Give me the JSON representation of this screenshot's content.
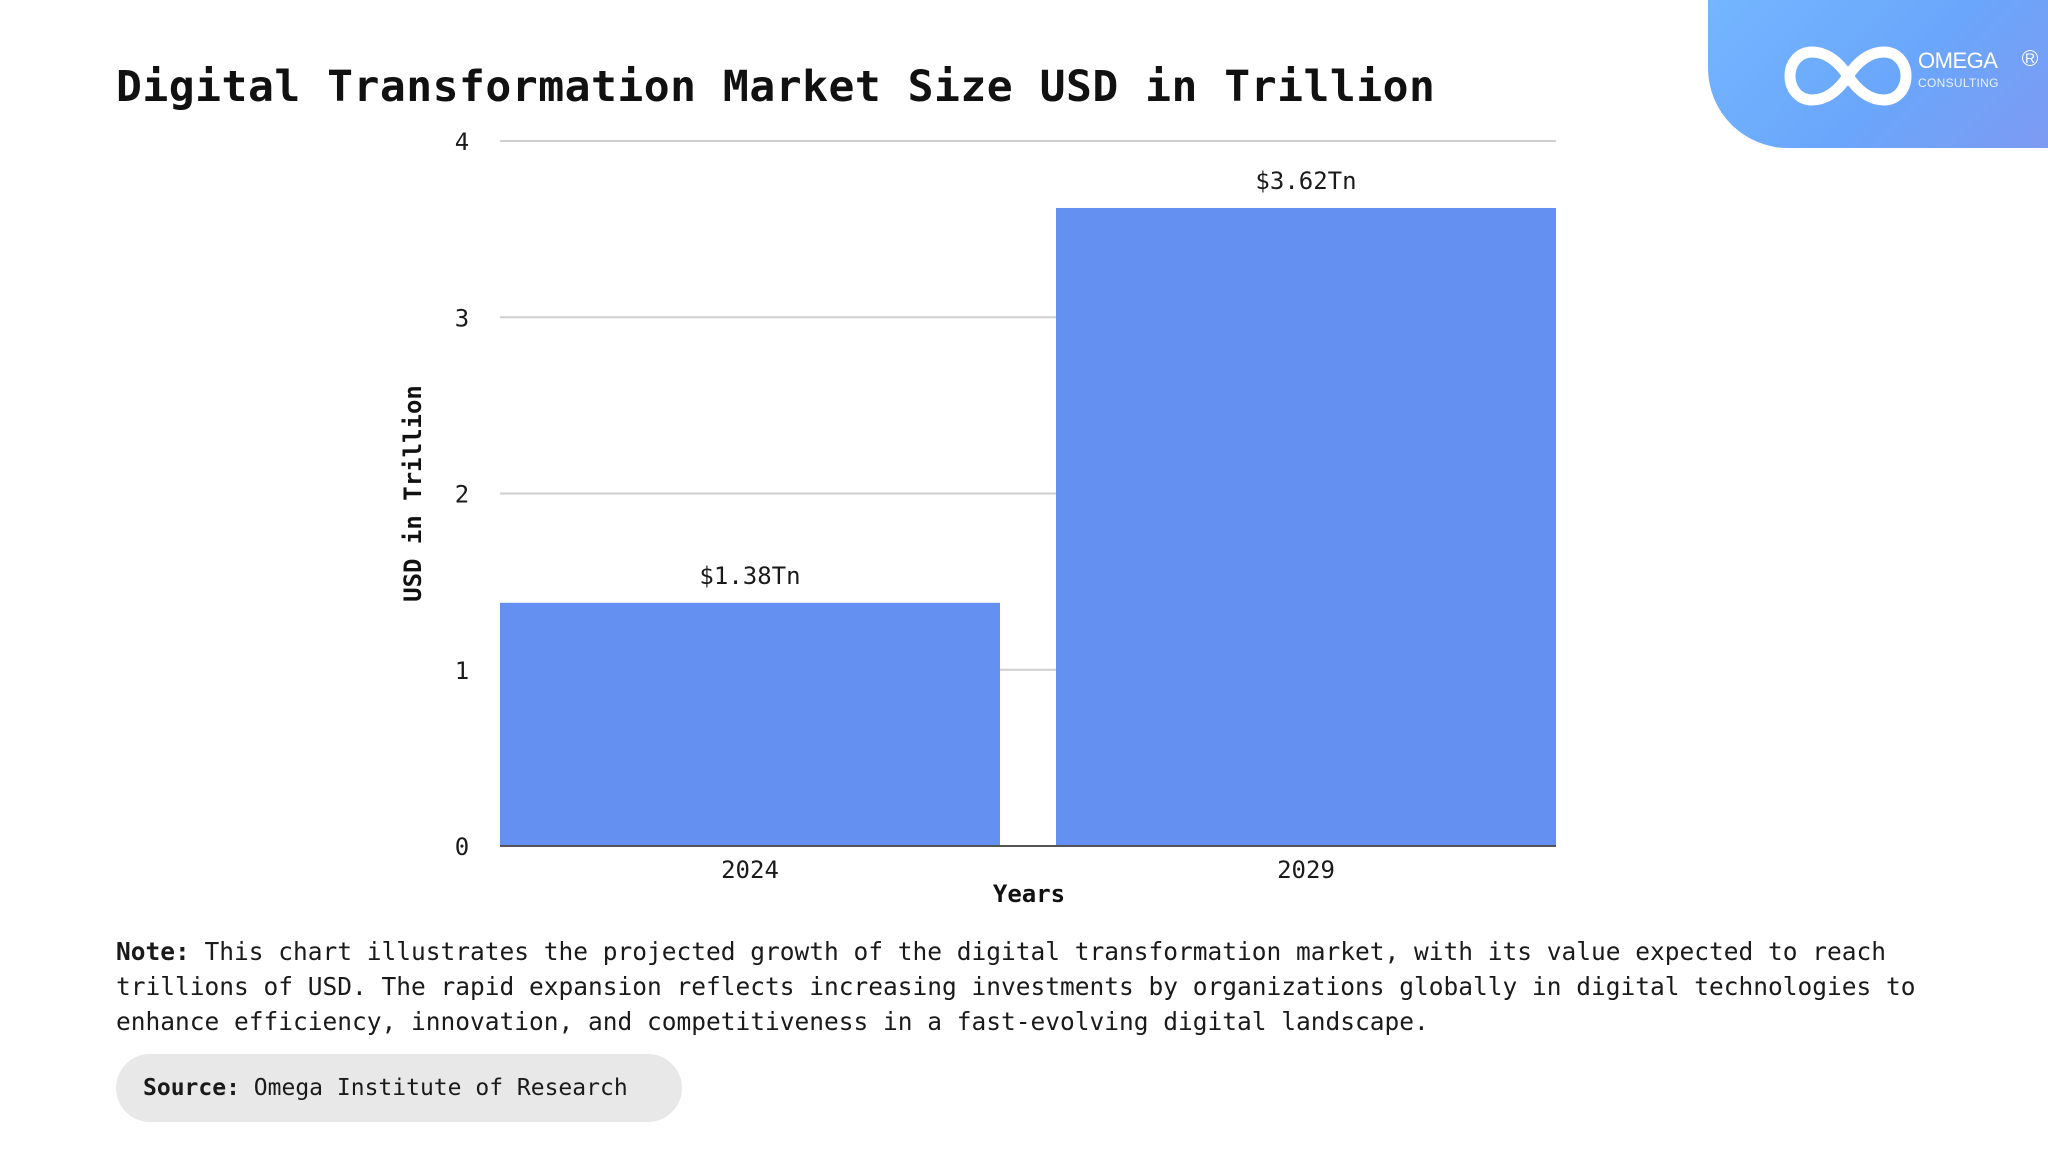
{
  "title": "Digital Transformation Market Size USD in Trillion",
  "logo": {
    "name": "OMEGA",
    "sub": "CONSULTING",
    "reg": "R"
  },
  "colors": {
    "bar": "#6490f1",
    "logo_gradient_start": "#74b6ff",
    "logo_gradient_end": "#7d9af2",
    "grid": "#cfcfcf"
  },
  "chart_data": {
    "type": "bar",
    "categories": [
      "2024",
      "2029"
    ],
    "values": [
      1.38,
      3.62
    ],
    "value_labels": [
      "$1.38Tn",
      "$3.62Tn"
    ],
    "xlabel": "Years",
    "ylabel": "USD in Trillion",
    "ylim": [
      0,
      4
    ],
    "yticks": [
      "0",
      "1",
      "2",
      "3",
      "4"
    ],
    "grid": true
  },
  "note": {
    "label": "Note:",
    "text": "This chart illustrates the projected growth of the digital transformation market, with its value expected to reach trillions of USD. The rapid expansion reflects increasing investments by organizations globally in digital technologies to enhance efficiency, innovation, and competitiveness in a fast-evolving digital landscape."
  },
  "source": {
    "label": "Source:",
    "text": "Omega Institute of Research"
  }
}
